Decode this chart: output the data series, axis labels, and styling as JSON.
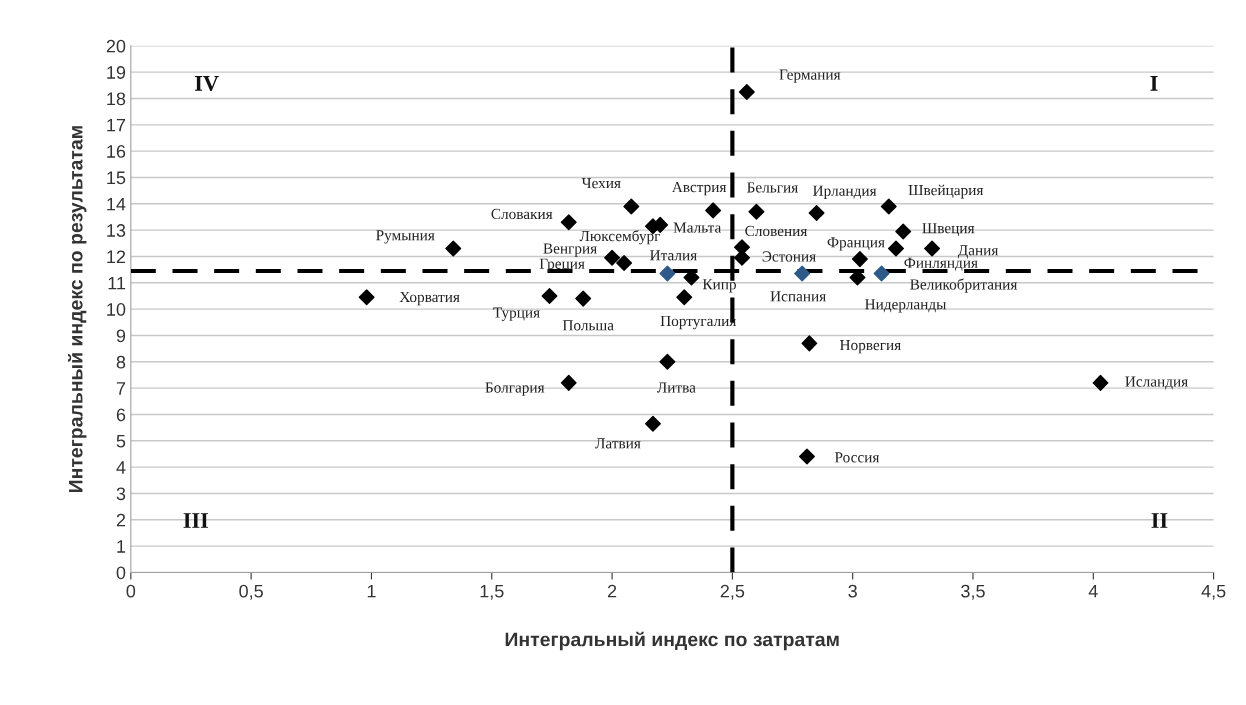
{
  "chart_data": {
    "type": "scatter",
    "xlabel": "Интегральный индекс по затратам",
    "ylabel": "Интегральный индекс по результатам",
    "x": [
      2.56,
      2.08,
      1.82,
      1.34,
      0.98,
      2.17,
      2.2,
      2.0,
      2.05,
      2.23,
      2.33,
      2.3,
      1.74,
      1.88,
      1.82,
      2.23,
      2.17,
      2.42,
      2.6,
      2.54,
      2.54,
      2.79,
      2.85,
      3.15,
      3.21,
      3.18,
      3.33,
      3.03,
      3.02,
      3.12,
      2.82,
      4.03,
      2.81
    ],
    "values": [
      18.25,
      13.9,
      13.3,
      12.3,
      10.45,
      13.15,
      13.2,
      11.95,
      11.75,
      11.35,
      11.2,
      10.45,
      10.5,
      10.4,
      7.2,
      8.0,
      5.65,
      13.75,
      13.7,
      12.35,
      11.95,
      11.35,
      13.65,
      13.9,
      12.95,
      12.3,
      12.3,
      11.9,
      11.2,
      11.35,
      8.7,
      7.2,
      4.4
    ],
    "colors": [
      "#000000",
      "#000000",
      "#000000",
      "#000000",
      "#000000",
      "#000000",
      "#000000",
      "#000000",
      "#000000",
      "#2e5a8a",
      "#000000",
      "#000000",
      "#000000",
      "#000000",
      "#000000",
      "#000000",
      "#000000",
      "#000000",
      "#000000",
      "#000000",
      "#000000",
      "#2e5a8a",
      "#000000",
      "#000000",
      "#000000",
      "#000000",
      "#000000",
      "#000000",
      "#000000",
      "#2e5a8a",
      "#000000",
      "#000000",
      "#000000"
    ],
    "marker": "diamond",
    "xlim": [
      0,
      4.5
    ],
    "ylim": [
      0,
      20
    ],
    "xticks": [
      0,
      {
        "value": 0.5,
        "label": "0,5"
      },
      1,
      {
        "value": 1.5,
        "label": "1,5"
      },
      2,
      {
        "value": 2.5,
        "label": "2,5"
      },
      3,
      {
        "value": 3.5,
        "label": "3,5"
      },
      4,
      {
        "value": 4.5,
        "label": "4,5"
      }
    ],
    "yticks": [
      0,
      1,
      2,
      3,
      4,
      5,
      6,
      7,
      8,
      9,
      10,
      11,
      12,
      13,
      14,
      15,
      16,
      17,
      18,
      19,
      20
    ],
    "grid": "y",
    "legend": false,
    "ref_lines": [
      {
        "axis": "x",
        "value": 2.5,
        "color": "#000000",
        "line_style": "dashed"
      },
      {
        "axis": "y",
        "value": 11.45,
        "color": "#000000",
        "line_style": "dashed"
      }
    ],
    "annotations": [
      {
        "text": "Германия",
        "x": 2.56,
        "y": 18.25
      },
      {
        "text": "Чехия",
        "x": 2.08,
        "y": 13.9
      },
      {
        "text": "Словакия",
        "x": 1.82,
        "y": 13.3
      },
      {
        "text": "Румыния",
        "x": 1.34,
        "y": 12.3
      },
      {
        "text": "Хорватия",
        "x": 0.98,
        "y": 10.45
      },
      {
        "text": "Люксембург",
        "x": 2.17,
        "y": 13.15
      },
      {
        "text": "Мальта",
        "x": 2.2,
        "y": 13.2
      },
      {
        "text": "Венгрия",
        "x": 2.0,
        "y": 11.95
      },
      {
        "text": "Греция",
        "x": 2.05,
        "y": 11.75
      },
      {
        "text": "Италия",
        "x": 2.23,
        "y": 11.35
      },
      {
        "text": "Кипр",
        "x": 2.33,
        "y": 11.2
      },
      {
        "text": "Португалия",
        "x": 2.3,
        "y": 10.45
      },
      {
        "text": "Турция",
        "x": 1.74,
        "y": 10.5
      },
      {
        "text": "Польша",
        "x": 1.88,
        "y": 10.4
      },
      {
        "text": "Болгария",
        "x": 1.82,
        "y": 7.2
      },
      {
        "text": "Литва",
        "x": 2.23,
        "y": 8.0
      },
      {
        "text": "Латвия",
        "x": 2.17,
        "y": 5.65
      },
      {
        "text": "Австрия",
        "x": 2.42,
        "y": 13.75
      },
      {
        "text": "Бельгия",
        "x": 2.6,
        "y": 13.7
      },
      {
        "text": "Словения",
        "x": 2.54,
        "y": 12.35
      },
      {
        "text": "Эстония",
        "x": 2.54,
        "y": 11.95
      },
      {
        "text": "Испания",
        "x": 2.79,
        "y": 11.35
      },
      {
        "text": "Ирландия",
        "x": 2.85,
        "y": 13.65
      },
      {
        "text": "Швейцария",
        "x": 3.15,
        "y": 13.9
      },
      {
        "text": "Швеция",
        "x": 3.21,
        "y": 12.95
      },
      {
        "text": "Франция",
        "x": 3.18,
        "y": 12.3
      },
      {
        "text": "Дания",
        "x": 3.33,
        "y": 12.3
      },
      {
        "text": "Финляндия",
        "x": 3.03,
        "y": 11.9
      },
      {
        "text": "Нидерланды",
        "x": 3.02,
        "y": 11.2
      },
      {
        "text": "Великобритания",
        "x": 3.12,
        "y": 11.35
      },
      {
        "text": "Норвегия",
        "x": 2.82,
        "y": 8.7
      },
      {
        "text": "Исландия",
        "x": 4.03,
        "y": 7.2
      },
      {
        "text": "Россия",
        "x": 2.81,
        "y": 4.4
      },
      "IV",
      "I",
      "III",
      "II"
    ]
  }
}
